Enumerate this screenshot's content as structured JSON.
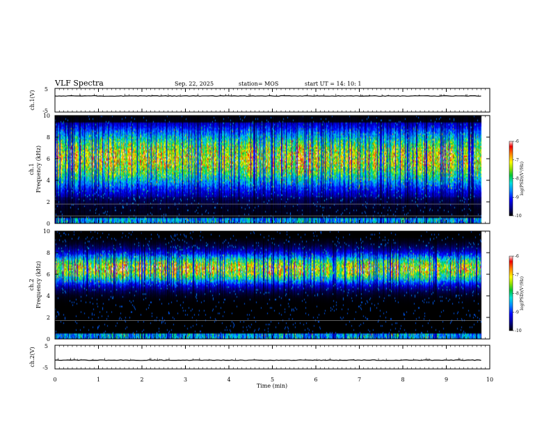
{
  "header": {
    "title": "VLF Spectra",
    "date": "Sep. 22, 2025",
    "station": "station= MOS",
    "start": "start  UT =   14: 10: 1"
  },
  "colors": {
    "spectrogram_scale": [
      "#000000",
      "#00008b",
      "#0000ff",
      "#0080ff",
      "#00e0e0",
      "#00c000",
      "#a0e000",
      "#ffff00",
      "#ff8000",
      "#ff0000",
      "#ffffff"
    ],
    "axis": "#000000",
    "line_marker": "#808080"
  },
  "chart_data": [
    {
      "type": "line",
      "name": "channel-1-voltage",
      "ylabel": "ch.1(V)",
      "ylim": [
        -5,
        5
      ],
      "yticks": [
        "5",
        "-5"
      ],
      "x": [
        0,
        9.8
      ],
      "y": [
        1.8,
        1.8
      ]
    },
    {
      "type": "heatmap",
      "name": "channel-1-spectrogram",
      "ylabel": "ch.1\nFrequency  (kHz)",
      "ylabel_lines": [
        "ch.1",
        "Frequency  (kHz)"
      ],
      "ylim": [
        0,
        10
      ],
      "yticks": [
        "0",
        "2",
        "4",
        "6",
        "8",
        "10"
      ],
      "xlim": [
        0,
        10
      ],
      "data_end_min": 9.8,
      "peak_band_khz": [
        3,
        9
      ],
      "lines_khz": [
        1.8,
        0.7
      ],
      "colorbar": {
        "label": "log(PSD)(V²/Hz)",
        "range": [
          -10,
          -6
        ],
        "ticks": [
          "-6",
          "-7",
          "-8",
          "-9",
          "-10"
        ]
      }
    },
    {
      "type": "heatmap",
      "name": "channel-2-spectrogram",
      "ylabel": "ch.2\nFrequency  (kHz)",
      "ylabel_lines": [
        "ch.2",
        "Frequency  (kHz)"
      ],
      "ylim": [
        0,
        10
      ],
      "yticks": [
        "0",
        "2",
        "4",
        "6",
        "8",
        "10"
      ],
      "xlim": [
        0,
        10
      ],
      "data_end_min": 9.8,
      "peak_band_khz": [
        5,
        8
      ],
      "lines_khz": [
        1.7
      ],
      "colorbar": {
        "label": "log(PSD)(V²/Hz)",
        "range": [
          -10,
          -6
        ],
        "ticks": [
          "-6",
          "-7",
          "-8",
          "-9",
          "-10"
        ]
      }
    },
    {
      "type": "line",
      "name": "channel-2-voltage",
      "ylabel": "ch.2(V)",
      "ylim": [
        -5,
        5
      ],
      "yticks": [
        "5",
        "-5"
      ],
      "x": [
        0,
        9.8
      ],
      "y": [
        -1.3,
        -1.3
      ]
    }
  ],
  "xaxis": {
    "label": "Time  (min)",
    "ticks": [
      "0",
      "1",
      "2",
      "3",
      "4",
      "5",
      "6",
      "7",
      "8",
      "9",
      "10"
    ],
    "range": [
      0,
      10
    ]
  }
}
